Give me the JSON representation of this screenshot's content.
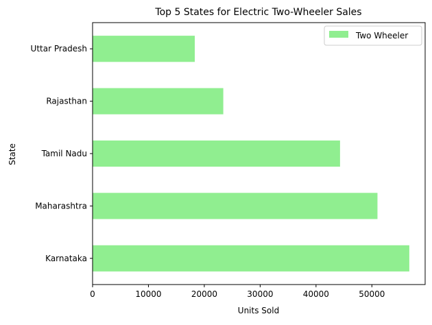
{
  "chart_data": {
    "type": "bar",
    "orientation": "horizontal",
    "title": "Top 5 States for Electric Two-Wheeler Sales",
    "xlabel": "Units Sold",
    "ylabel": "State",
    "categories": [
      "Karnataka",
      "Maharashtra",
      "Tamil Nadu",
      "Rajasthan",
      "Uttar Pradesh"
    ],
    "series": [
      {
        "name": "Two Wheeler",
        "color": "#90EE90",
        "values": [
          56700,
          51000,
          44300,
          23400,
          18300
        ]
      }
    ],
    "xlim": [
      0,
      59535
    ],
    "xticks": [
      0,
      10000,
      20000,
      30000,
      40000,
      50000
    ],
    "xtick_labels": [
      "0",
      "10000",
      "20000",
      "30000",
      "40000",
      "50000"
    ],
    "grid": false,
    "legend": {
      "position": "top-right",
      "entries": [
        "Two Wheeler"
      ]
    }
  }
}
